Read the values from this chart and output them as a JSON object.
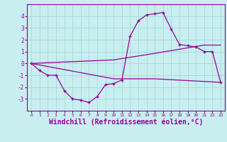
{
  "background_color": "#c8eef0",
  "grid_color": "#aadddd",
  "line_color": "#990099",
  "marker_color": "#990099",
  "xlabel": "Windchill (Refroidissement éolien,°C)",
  "xlabel_fontsize": 7,
  "xlim": [
    -0.5,
    23.5
  ],
  "ylim": [
    -4,
    5
  ],
  "yticks": [
    -3,
    -2,
    -1,
    0,
    1,
    2,
    3,
    4
  ],
  "xticks": [
    0,
    1,
    2,
    3,
    4,
    5,
    6,
    7,
    8,
    9,
    10,
    11,
    12,
    13,
    14,
    15,
    16,
    17,
    18,
    19,
    20,
    21,
    22,
    23
  ],
  "series1_x": [
    0,
    1,
    2,
    3,
    4,
    5,
    6,
    7,
    8,
    9,
    10,
    11,
    12,
    13,
    14,
    15,
    16,
    17,
    18,
    19,
    20,
    21,
    22,
    23
  ],
  "series1_y": [
    0.0,
    -0.6,
    -1.0,
    -1.0,
    -2.3,
    -3.0,
    -3.1,
    -3.3,
    -2.8,
    -1.8,
    -1.7,
    -1.4,
    2.3,
    3.6,
    4.1,
    4.2,
    4.3,
    2.9,
    1.6,
    1.5,
    1.4,
    1.0,
    1.0,
    -1.6
  ],
  "series2_x": [
    0,
    10,
    15,
    21,
    23
  ],
  "series2_y": [
    0.0,
    0.3,
    0.85,
    1.55,
    1.55
  ],
  "series3_x": [
    0,
    10,
    15,
    23
  ],
  "series3_y": [
    0.0,
    -1.3,
    -1.3,
    -1.6
  ]
}
